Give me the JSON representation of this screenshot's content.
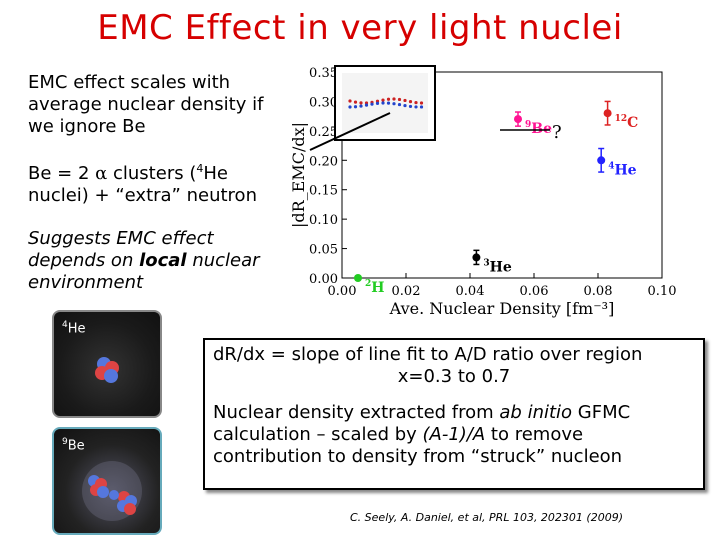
{
  "slide": {
    "title": "EMC Effect in very light nuclei",
    "para1": "EMC effect scales with average nuclear density if we ignore Be",
    "para2_prefix": "Be = 2 ",
    "para2_alpha": "α",
    "para2_mid": " clusters (",
    "para2_sup": "4",
    "para2_suffix": "He nuclei) + “extra” neutron",
    "para3_a": "Suggests EMC effect depends on ",
    "para3_em": "local",
    "para3_b": " nuclear environment",
    "box_line1": "dR/dx = slope of line fit to A/D ratio over region",
    "box_line2": "x=0.3 to 0.7",
    "box_line3_a": "Nuclear density extracted from ",
    "box_line3_em": "ab initio",
    "box_line3_b": " GFMC calculation – scaled by ",
    "box_line3_em2": "(A-1)/A",
    "box_line3_c": " to remove contribution to density from “struck” nucleon",
    "citation": "C. Seely, A. Daniel, et al, PRL 103, 202301 (2009)",
    "question_mark": "?",
    "tile1_mass": "4",
    "tile1_el": "He",
    "tile2_mass": "9",
    "tile2_el": "Be"
  },
  "chart_data": {
    "type": "scatter",
    "xlabel": "Ave. Nuclear Density [fm⁻³]",
    "ylabel": "|dR_EMC/dx|",
    "xlim": [
      0.0,
      0.1
    ],
    "ylim": [
      0.0,
      0.35
    ],
    "xticks": [
      "0.00",
      "0.02",
      "0.04",
      "0.06",
      "0.08",
      "0.10"
    ],
    "yticks": [
      "0.00",
      "0.05",
      "0.10",
      "0.15",
      "0.20",
      "0.25",
      "0.30",
      "0.35"
    ],
    "points": [
      {
        "label": "2H",
        "mass": "2",
        "el": "H",
        "x": 0.005,
        "y": 0.0,
        "err": 0.0,
        "color": "#22cc22"
      },
      {
        "label": "3He",
        "mass": "3",
        "el": "He",
        "x": 0.042,
        "y": 0.035,
        "err": 0.012,
        "color": "#000000"
      },
      {
        "label": "4He",
        "mass": "4",
        "el": "He",
        "x": 0.081,
        "y": 0.2,
        "err": 0.02,
        "color": "#2222ff"
      },
      {
        "label": "9Be",
        "mass": "9",
        "el": "Be",
        "x": 0.055,
        "y": 0.27,
        "err": 0.012,
        "color": "#ff1493"
      },
      {
        "label": "12C",
        "mass": "12",
        "el": "C",
        "x": 0.083,
        "y": 0.28,
        "err": 0.02,
        "color": "#dd2222"
      }
    ],
    "grid": false,
    "legend": "none"
  }
}
